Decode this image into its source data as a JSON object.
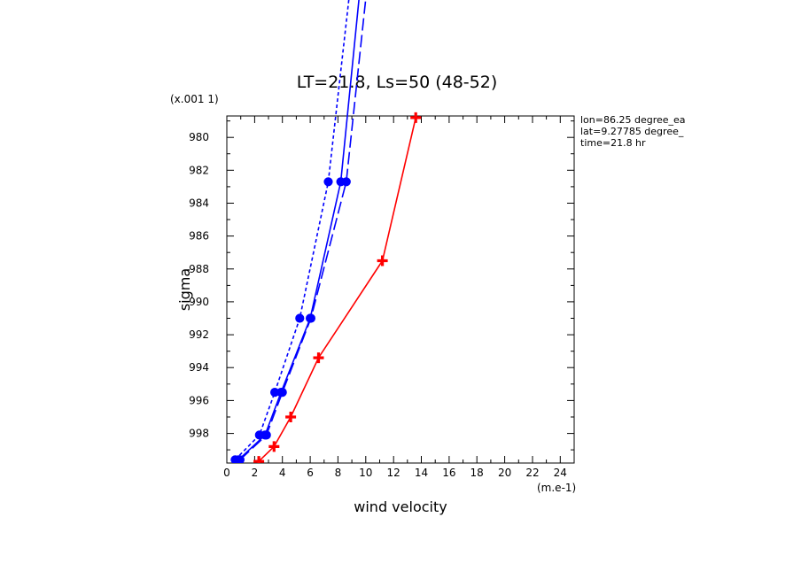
{
  "chart_data": {
    "type": "line",
    "title": "LT=21.8, Ls=50 (48-52)",
    "xlabel": "wind velocity",
    "ylabel": "sigma",
    "x_unit_label": "(m.e-1)",
    "y_unit_label": "(x.001 1)",
    "xlim": [
      0,
      25
    ],
    "ylim": [
      999.8,
      978.7
    ],
    "x_ticks": [
      "0",
      "2",
      "4",
      "6",
      "8",
      "10",
      "12",
      "14",
      "16",
      "18",
      "20",
      "22",
      "24"
    ],
    "y_ticks": [
      "980",
      "982",
      "984",
      "986",
      "988",
      "990",
      "992",
      "994",
      "996",
      "998"
    ],
    "info_lines": [
      "lon=86.25 degree_ea",
      "lat=9.27785 degree_",
      "time=21.8 hr"
    ],
    "series": [
      {
        "color": "#0000ff",
        "style": "solid",
        "marker": "circle",
        "x": [
          0.85,
          2.75,
          3.9,
          6.0,
          8.2,
          9.7
        ],
        "y": [
          999.6,
          998.1,
          995.5,
          991.0,
          982.7,
          970.0
        ]
      },
      {
        "color": "#0000ff",
        "style": "dashed",
        "marker": "circle",
        "x": [
          0.95,
          2.85,
          4.0,
          6.05,
          8.6,
          10.2
        ],
        "y": [
          999.6,
          998.1,
          995.5,
          991.0,
          982.7,
          970.0
        ]
      },
      {
        "color": "#0000ff",
        "style": "dotted",
        "marker": "circle",
        "x": [
          0.6,
          2.35,
          3.45,
          5.25,
          7.3,
          9.0
        ],
        "y": [
          999.6,
          998.1,
          995.5,
          991.0,
          982.7,
          970.0
        ]
      },
      {
        "color": "#ff0000",
        "style": "solid",
        "marker": "plus",
        "x": [
          2.3,
          3.4,
          4.6,
          6.6,
          11.2,
          13.6
        ],
        "y": [
          999.7,
          998.8,
          997.0,
          993.4,
          987.5,
          978.8
        ]
      }
    ]
  }
}
